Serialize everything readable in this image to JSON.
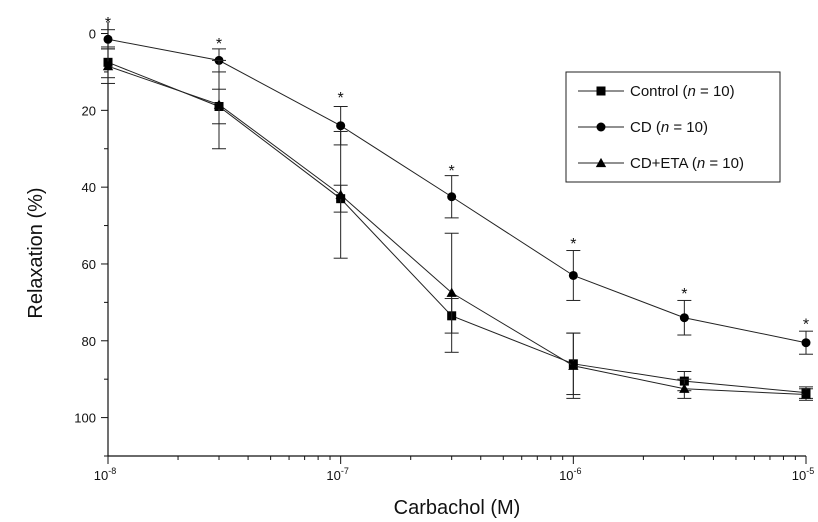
{
  "chart_data": {
    "type": "line",
    "title": "",
    "xlabel": "Carbachol (M)",
    "ylabel": "Relaxation  (%)",
    "x_scale": "log",
    "xlim": [
      1e-08,
      1e-05
    ],
    "ylim": [
      110,
      -3
    ],
    "y_inverted": true,
    "x_ticks": [
      {
        "value": 1e-08,
        "base": "10",
        "exp": "-8"
      },
      {
        "value": 1e-07,
        "base": "10",
        "exp": "-7"
      },
      {
        "value": 1e-06,
        "base": "10",
        "exp": "-6"
      },
      {
        "value": 1e-05,
        "base": "10",
        "exp": "-5"
      }
    ],
    "y_ticks": [
      0,
      20,
      40,
      60,
      80,
      100
    ],
    "grid": false,
    "legend_position": "top-right",
    "x": [
      1e-08,
      3e-08,
      1e-07,
      3e-07,
      1e-06,
      3e-06,
      1e-05
    ],
    "series": [
      {
        "name": "Control",
        "n_label": "n",
        "n_value": "= 10",
        "marker": "square",
        "values": [
          7.5,
          19,
          43,
          73.5,
          86,
          90.5,
          93.5
        ],
        "err": [
          4,
          4.5,
          3.5,
          4.5,
          8,
          2.5,
          1.5
        ]
      },
      {
        "name": "CD",
        "n_label": "n",
        "n_value": "= 10",
        "marker": "circle",
        "values": [
          1.5,
          7,
          24,
          42.5,
          63,
          74,
          80.5
        ],
        "err": [
          2.5,
          3,
          5,
          5.5,
          6.5,
          4.5,
          3
        ]
      },
      {
        "name": "CD+ETA",
        "n_label": "n",
        "n_value": "= 10",
        "marker": "triangle",
        "values": [
          8.5,
          18.5,
          42,
          67.5,
          86.5,
          92.5,
          94
        ],
        "err": [
          4.5,
          11.5,
          16.5,
          15.5,
          8.5,
          2.5,
          1.5
        ]
      }
    ],
    "annotations": [
      {
        "text": "*",
        "x": 1e-08,
        "y": -3.5
      },
      {
        "text": "*",
        "x": 3e-08,
        "y": 2
      },
      {
        "text": "*",
        "x": 1e-07,
        "y": 16
      },
      {
        "text": "*",
        "x": 3e-07,
        "y": 35
      },
      {
        "text": "*",
        "x": 1e-06,
        "y": 54
      },
      {
        "text": "*",
        "x": 3e-06,
        "y": 67
      },
      {
        "text": "*",
        "x": 1e-05,
        "y": 75
      }
    ]
  }
}
